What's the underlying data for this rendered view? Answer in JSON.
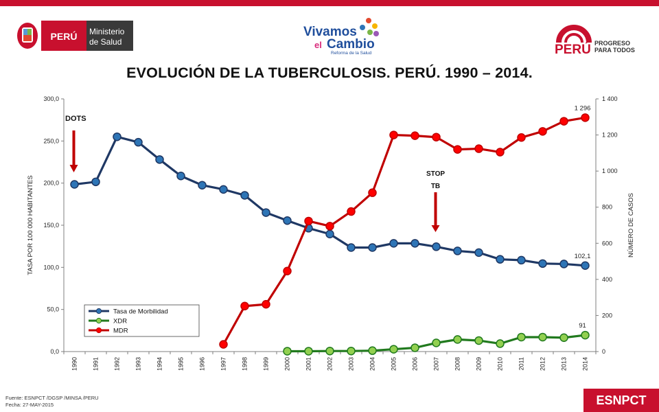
{
  "colors": {
    "brand_red": "#c8102e",
    "axis": "#7f7f7f",
    "series_morbilidad": "#1f3864",
    "marker_morbilidad": "#2e75b6",
    "series_xdr": "#217a1e",
    "marker_xdr": "#92d050",
    "series_mdr": "#c00000",
    "marker_mdr": "#ff0000",
    "arrow": "#c00000"
  },
  "logos": {
    "peru_flag_text": "PERÚ",
    "ministerio_line1": "Ministerio",
    "ministerio_line2": "de Salud",
    "vivamos_line1": "Vivamos",
    "vivamos_line2a": "el",
    "vivamos_line2b": "Cambio",
    "vivamos_sub": "Reforma de la Salud",
    "peru_progreso_main": "PERÚ",
    "peru_progreso_l1": "PROGRESO",
    "peru_progreso_l2": "PARA TODOS"
  },
  "title": "EVOLUCIÓN DE LA TUBERCULOSIS. PERÚ. 1990 – 2014.",
  "footer": {
    "source": "Fuente: ESNPCT /DGSP /MINSA /PERU",
    "date": "Fecha: 27-MAY-2015",
    "badge": "ESNPCT"
  },
  "chart_data": {
    "type": "line",
    "categories": [
      "1990",
      "1991",
      "1992",
      "1993",
      "1994",
      "1995",
      "1996",
      "1997",
      "1998",
      "1999",
      "2000",
      "2001",
      "2002",
      "2003",
      "2004",
      "2005",
      "2006",
      "2007",
      "2008",
      "2009",
      "2010",
      "2011",
      "2012",
      "2013",
      "2014"
    ],
    "ylabel_left": "TASA POR 100 000 HABITANTES",
    "ylabel_right": "NÚMERO DE CASOS",
    "ylim_left": [
      0,
      300
    ],
    "ylim_right": [
      0,
      1400
    ],
    "yticks_left": [
      "0,0",
      "50,0",
      "100,0",
      "150,0",
      "200,0",
      "250,0",
      "300,0"
    ],
    "yticks_right": [
      "0",
      "200",
      "400",
      "600",
      "800",
      "1 000",
      "1 200",
      "1 400"
    ],
    "grid": false,
    "legend_position": "bottom-left",
    "series": [
      {
        "name": "Tasa de Morbilidad",
        "axis": "left",
        "values": [
          198.5,
          201.5,
          255,
          248.5,
          228,
          208.5,
          197.5,
          192.5,
          185.5,
          165,
          155.5,
          146.5,
          139.5,
          123.5,
          123.5,
          128.5,
          128.5,
          124.5,
          119.5,
          117.5,
          109.5,
          108.5,
          104.5,
          104,
          102.1
        ]
      },
      {
        "name": "XDR",
        "axis": "right",
        "values": [
          null,
          null,
          null,
          null,
          null,
          null,
          null,
          null,
          null,
          null,
          2,
          2,
          3,
          3,
          5,
          13,
          21,
          48,
          67,
          61,
          44,
          80,
          80,
          77,
          91
        ]
      },
      {
        "name": "MDR",
        "axis": "right",
        "values": [
          null,
          null,
          null,
          null,
          null,
          null,
          null,
          40,
          252,
          262,
          446,
          723,
          695,
          776,
          880,
          1200,
          1196,
          1188,
          1120,
          1124,
          1105,
          1186,
          1220,
          1276,
          1296
        ]
      }
    ],
    "data_labels": [
      {
        "series": "MDR",
        "x": "2014",
        "text": "1 296"
      },
      {
        "series": "Tasa de Morbilidad",
        "x": "2014",
        "text": "102,1"
      },
      {
        "series": "XDR",
        "x": "2014",
        "text": "91"
      }
    ],
    "annotations": [
      {
        "text": "DOTS",
        "x": "1990",
        "y_left": 196
      },
      {
        "text": "STOP",
        "text2": "TB",
        "x": "2007",
        "y_left": 143
      }
    ]
  }
}
